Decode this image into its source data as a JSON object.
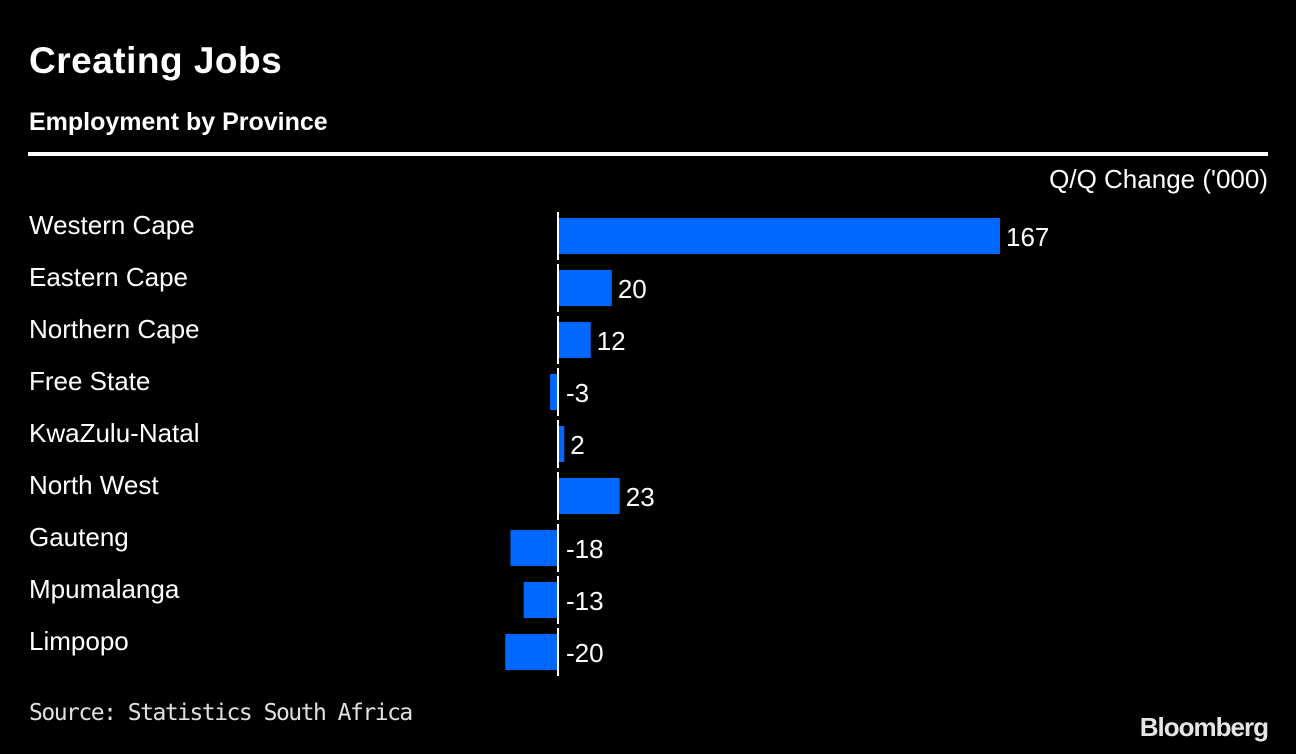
{
  "header": {
    "title": "Creating Jobs",
    "subtitle": "Employment by Province",
    "unit_label": "Q/Q Change ('000)"
  },
  "footer": {
    "source": "Source: Statistics South Africa",
    "brand": "Bloomberg"
  },
  "colors": {
    "bar": "#0068ff",
    "background": "#000000",
    "text": "#ffffff"
  },
  "chart_data": {
    "type": "bar",
    "orientation": "horizontal",
    "title": "Creating Jobs",
    "subtitle": "Employment by Province",
    "xlabel": "Q/Q Change ('000)",
    "ylabel": "",
    "categories": [
      "Western Cape",
      "Eastern Cape",
      "Northern Cape",
      "Free State",
      "KwaZulu-Natal",
      "North West",
      "Gauteng",
      "Mpumalanga",
      "Limpopo"
    ],
    "values": [
      167,
      20,
      12,
      -3,
      2,
      23,
      -18,
      -13,
      -20
    ],
    "data_labels": [
      "167",
      "20",
      "12",
      "-3",
      "2",
      "23",
      "-18",
      "-13",
      "-20"
    ],
    "xlim": [
      -20,
      167
    ],
    "grid": false,
    "legend": "none"
  }
}
